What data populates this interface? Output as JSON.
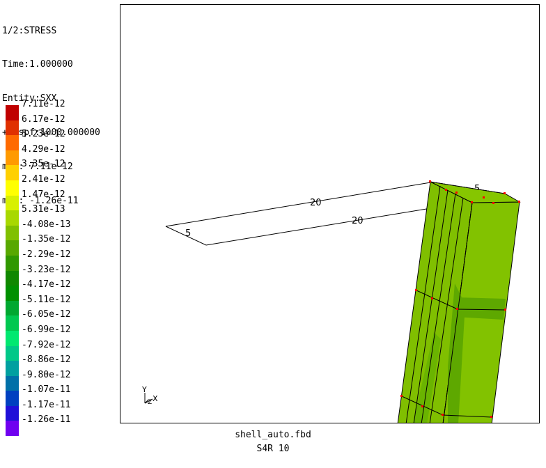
{
  "info": {
    "line1": "1/2:STRESS",
    "line2": "Time:1.000000",
    "line3": "Entity:SXX",
    "line4": "+Dispf:1000.000000",
    "line5": "max: 7.11e-12",
    "line6": "min: -1.26e-11"
  },
  "legend": {
    "labels": [
      "7.11e-12",
      "6.17e-12",
      "5.23e-12",
      "4.29e-12",
      "3.35e-12",
      "2.41e-12",
      "1.47e-12",
      "5.31e-13",
      "-4.08e-13",
      "-1.35e-12",
      "-2.29e-12",
      "-3.23e-12",
      "-4.17e-12",
      "-5.11e-12",
      "-6.05e-12",
      "-6.99e-12",
      "-7.92e-12",
      "-8.86e-12",
      "-9.80e-12",
      "-1.07e-11",
      "-1.17e-11",
      "-1.26e-11"
    ],
    "colors": [
      "#c00000",
      "#e03000",
      "#ff6a00",
      "#ff9a00",
      "#ffd000",
      "#ffff00",
      "#d8f000",
      "#a8d800",
      "#80c000",
      "#58a800",
      "#309800",
      "#108800",
      "#009000",
      "#00a830",
      "#00c850",
      "#00e870",
      "#00c888",
      "#00a0a0",
      "#0070a8",
      "#0040c0",
      "#2010d8",
      "#7000f0"
    ]
  },
  "viewport": {
    "labels": {
      "frame_long_top": "20",
      "frame_long_bottom": "20",
      "frame_short_left": "5",
      "frame_short_right": "5"
    },
    "axis": {
      "y": "Y",
      "x": "X",
      "z": "Z"
    }
  },
  "footer": {
    "filename": "shell_auto.fbd",
    "element_info": "S4R 10"
  }
}
